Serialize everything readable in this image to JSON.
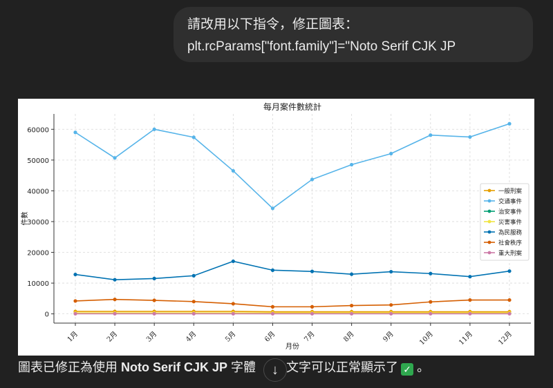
{
  "user_message": {
    "line1": "請改用以下指令，修正圖表：",
    "line2": "plt.rcParams[\"font.family\"]=\"Noto Serif CJK JP"
  },
  "reply": {
    "before": "圖表已修正為使用 ",
    "bold": "Noto Serif CJK JP",
    "after_bold": " 字體",
    "after_button": "文字可以正常顯示了",
    "end": " 。",
    "check_icon": "check-mark-icon"
  },
  "scroll_button": {
    "icon": "arrow-down-icon",
    "glyph": "↓"
  },
  "chart_data": {
    "type": "line",
    "title": "每月案件數統計",
    "xlabel": "月份",
    "ylabel": "件數",
    "categories": [
      "1月",
      "2月",
      "3月",
      "4月",
      "5月",
      "6月",
      "7月",
      "8月",
      "9月",
      "10月",
      "11月",
      "12月"
    ],
    "ylim": [
      -3000,
      65000
    ],
    "yticks": [
      0,
      10000,
      20000,
      30000,
      40000,
      50000,
      60000
    ],
    "grid": true,
    "legend_position": "center-right",
    "series": [
      {
        "name": "一般刑案",
        "color": "#e69f00",
        "values": [
          800,
          800,
          800,
          800,
          800,
          700,
          700,
          700,
          700,
          700,
          700,
          700
        ]
      },
      {
        "name": "交通事件",
        "color": "#56b4e9",
        "values": [
          59000,
          50700,
          60000,
          57400,
          46500,
          34300,
          43700,
          48500,
          52100,
          58100,
          57500,
          61800
        ]
      },
      {
        "name": "治安事件",
        "color": "#009e73",
        "values": [
          150,
          150,
          150,
          150,
          150,
          150,
          150,
          150,
          150,
          150,
          150,
          150
        ]
      },
      {
        "name": "災害事件",
        "color": "#f0e442",
        "values": [
          300,
          300,
          300,
          300,
          300,
          300,
          300,
          300,
          300,
          300,
          300,
          300
        ]
      },
      {
        "name": "為民服務",
        "color": "#0072b2",
        "values": [
          12800,
          11100,
          11500,
          12400,
          17100,
          14200,
          13800,
          12900,
          13700,
          13100,
          12100,
          13900
        ]
      },
      {
        "name": "社會秩序",
        "color": "#d55e00",
        "values": [
          4200,
          4700,
          4400,
          4000,
          3300,
          2300,
          2300,
          2700,
          2900,
          3900,
          4500,
          4500
        ]
      },
      {
        "name": "重大刑案",
        "color": "#cc79a7",
        "values": [
          50,
          50,
          50,
          50,
          50,
          50,
          50,
          50,
          50,
          50,
          50,
          50
        ]
      }
    ]
  }
}
